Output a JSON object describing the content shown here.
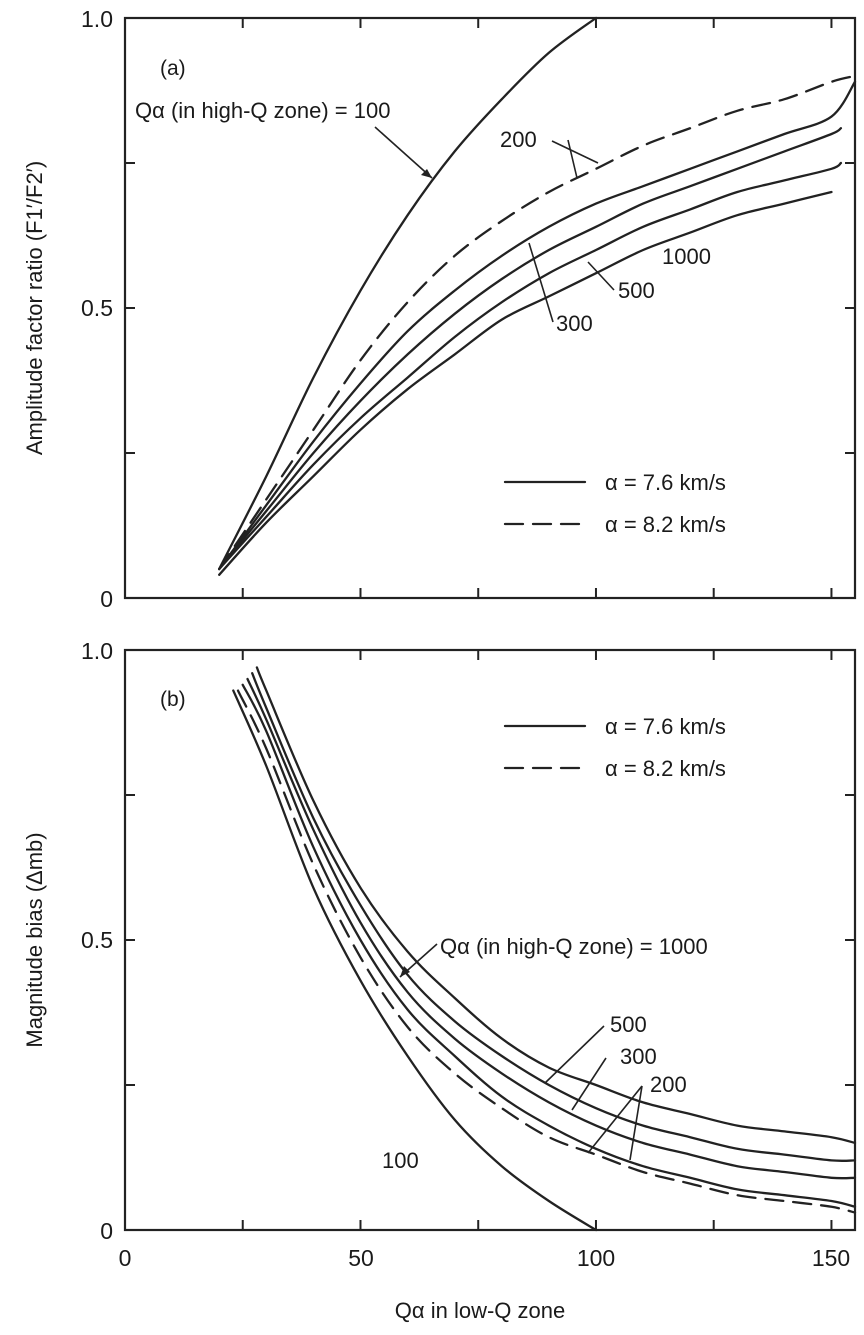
{
  "chart_data": [
    {
      "panel": "(a)",
      "type": "line",
      "ylabel": "Amplitude factor ratio (F1′/F2′)",
      "xlabel": "",
      "xlim": [
        0,
        155
      ],
      "ylim": [
        0,
        1.0
      ],
      "y_ticks": [
        "0",
        "0.5",
        "1.0"
      ],
      "x_ticks_minor": [
        25,
        50,
        75,
        100,
        125,
        150
      ],
      "legend": {
        "placement": "lower-right",
        "entries": [
          {
            "style": "solid",
            "label": "α = 7.6 km/s"
          },
          {
            "style": "dashed",
            "label": "α = 8.2 km/s"
          }
        ]
      },
      "annotations": {
        "header": "Qα (in high-Q zone) = 100",
        "q200": "200",
        "q300": "300",
        "q500": "500",
        "q1000": "1000"
      },
      "series": [
        {
          "label": "100",
          "style": "solid",
          "x": [
            20,
            30,
            40,
            50,
            60,
            70,
            80,
            90,
            100
          ],
          "y": [
            0.05,
            0.21,
            0.38,
            0.53,
            0.66,
            0.77,
            0.86,
            0.94,
            1.0
          ]
        },
        {
          "label": "200",
          "style": "dashed",
          "x": [
            20,
            30,
            40,
            50,
            60,
            70,
            80,
            90,
            100,
            110,
            120,
            130,
            140,
            150,
            155
          ],
          "y": [
            0.05,
            0.17,
            0.29,
            0.41,
            0.51,
            0.59,
            0.65,
            0.7,
            0.74,
            0.78,
            0.81,
            0.84,
            0.86,
            0.89,
            0.9
          ]
        },
        {
          "label": "200",
          "style": "solid",
          "x": [
            20,
            30,
            40,
            50,
            60,
            70,
            80,
            90,
            100,
            110,
            120,
            130,
            140,
            150,
            155
          ],
          "y": [
            0.05,
            0.16,
            0.27,
            0.37,
            0.46,
            0.53,
            0.59,
            0.64,
            0.68,
            0.71,
            0.74,
            0.77,
            0.8,
            0.83,
            0.89
          ]
        },
        {
          "label": "300",
          "style": "solid",
          "x": [
            20,
            30,
            40,
            50,
            60,
            70,
            80,
            90,
            100,
            110,
            120,
            130,
            140,
            150,
            152
          ],
          "y": [
            0.05,
            0.15,
            0.25,
            0.34,
            0.42,
            0.49,
            0.55,
            0.6,
            0.64,
            0.68,
            0.71,
            0.74,
            0.77,
            0.8,
            0.81
          ]
        },
        {
          "label": "500",
          "style": "solid",
          "x": [
            20,
            30,
            40,
            50,
            60,
            70,
            80,
            90,
            100,
            110,
            120,
            130,
            140,
            150,
            152
          ],
          "y": [
            0.05,
            0.14,
            0.23,
            0.31,
            0.38,
            0.45,
            0.51,
            0.56,
            0.6,
            0.64,
            0.67,
            0.7,
            0.72,
            0.74,
            0.75
          ]
        },
        {
          "label": "1000",
          "style": "solid",
          "x": [
            20,
            30,
            40,
            50,
            60,
            70,
            80,
            90,
            100,
            110,
            120,
            130,
            140,
            150
          ],
          "y": [
            0.04,
            0.13,
            0.21,
            0.29,
            0.36,
            0.42,
            0.48,
            0.52,
            0.56,
            0.6,
            0.63,
            0.66,
            0.68,
            0.7
          ]
        }
      ]
    },
    {
      "panel": "(b)",
      "type": "line",
      "ylabel": "Magnitude bias (Δmb)",
      "xlabel": "Qα in low-Q zone",
      "xlim": [
        0,
        155
      ],
      "ylim": [
        0,
        1.0
      ],
      "x_ticks": [
        "0",
        "50",
        "100",
        "150"
      ],
      "y_ticks": [
        "0",
        "0.5",
        "1.0"
      ],
      "legend": {
        "placement": "top-right",
        "entries": [
          {
            "style": "solid",
            "label": "α = 7.6 km/s"
          },
          {
            "style": "dashed",
            "label": "α = 8.2 km/s"
          }
        ]
      },
      "annotations": {
        "header": "Qα (in high-Q zone) = 1000",
        "q500": "500",
        "q300": "300",
        "q200": "200",
        "q100": "100"
      },
      "series": [
        {
          "label": "100",
          "style": "solid",
          "x": [
            23,
            30,
            40,
            50,
            60,
            70,
            80,
            90,
            100
          ],
          "y": [
            0.93,
            0.8,
            0.59,
            0.43,
            0.3,
            0.19,
            0.11,
            0.05,
            0.0
          ]
        },
        {
          "label": "200",
          "style": "dashed",
          "x": [
            24,
            30,
            40,
            50,
            60,
            70,
            80,
            90,
            100,
            110,
            120,
            130,
            140,
            150,
            155
          ],
          "y": [
            0.93,
            0.83,
            0.63,
            0.47,
            0.35,
            0.27,
            0.21,
            0.16,
            0.13,
            0.1,
            0.08,
            0.06,
            0.05,
            0.04,
            0.03
          ]
        },
        {
          "label": "200",
          "style": "solid",
          "x": [
            25,
            30,
            40,
            50,
            60,
            70,
            80,
            90,
            100,
            110,
            120,
            130,
            140,
            150,
            155
          ],
          "y": [
            0.94,
            0.86,
            0.66,
            0.5,
            0.38,
            0.3,
            0.23,
            0.18,
            0.14,
            0.11,
            0.09,
            0.07,
            0.06,
            0.05,
            0.04
          ]
        },
        {
          "label": "300",
          "style": "solid",
          "x": [
            26,
            30,
            40,
            50,
            60,
            70,
            80,
            90,
            100,
            110,
            120,
            130,
            140,
            150,
            155
          ],
          "y": [
            0.95,
            0.88,
            0.69,
            0.53,
            0.41,
            0.33,
            0.27,
            0.22,
            0.18,
            0.15,
            0.13,
            0.11,
            0.1,
            0.09,
            0.09
          ]
        },
        {
          "label": "500",
          "style": "solid",
          "x": [
            27,
            30,
            40,
            50,
            60,
            70,
            80,
            90,
            100,
            110,
            120,
            130,
            140,
            150,
            155
          ],
          "y": [
            0.96,
            0.9,
            0.71,
            0.56,
            0.44,
            0.36,
            0.3,
            0.25,
            0.21,
            0.18,
            0.16,
            0.14,
            0.13,
            0.12,
            0.12
          ]
        },
        {
          "label": "1000",
          "style": "solid",
          "x": [
            28,
            30,
            40,
            50,
            60,
            70,
            80,
            90,
            100,
            110,
            120,
            130,
            140,
            150,
            155
          ],
          "y": [
            0.97,
            0.93,
            0.74,
            0.59,
            0.48,
            0.4,
            0.33,
            0.28,
            0.25,
            0.22,
            0.2,
            0.18,
            0.17,
            0.16,
            0.15
          ]
        }
      ]
    }
  ]
}
